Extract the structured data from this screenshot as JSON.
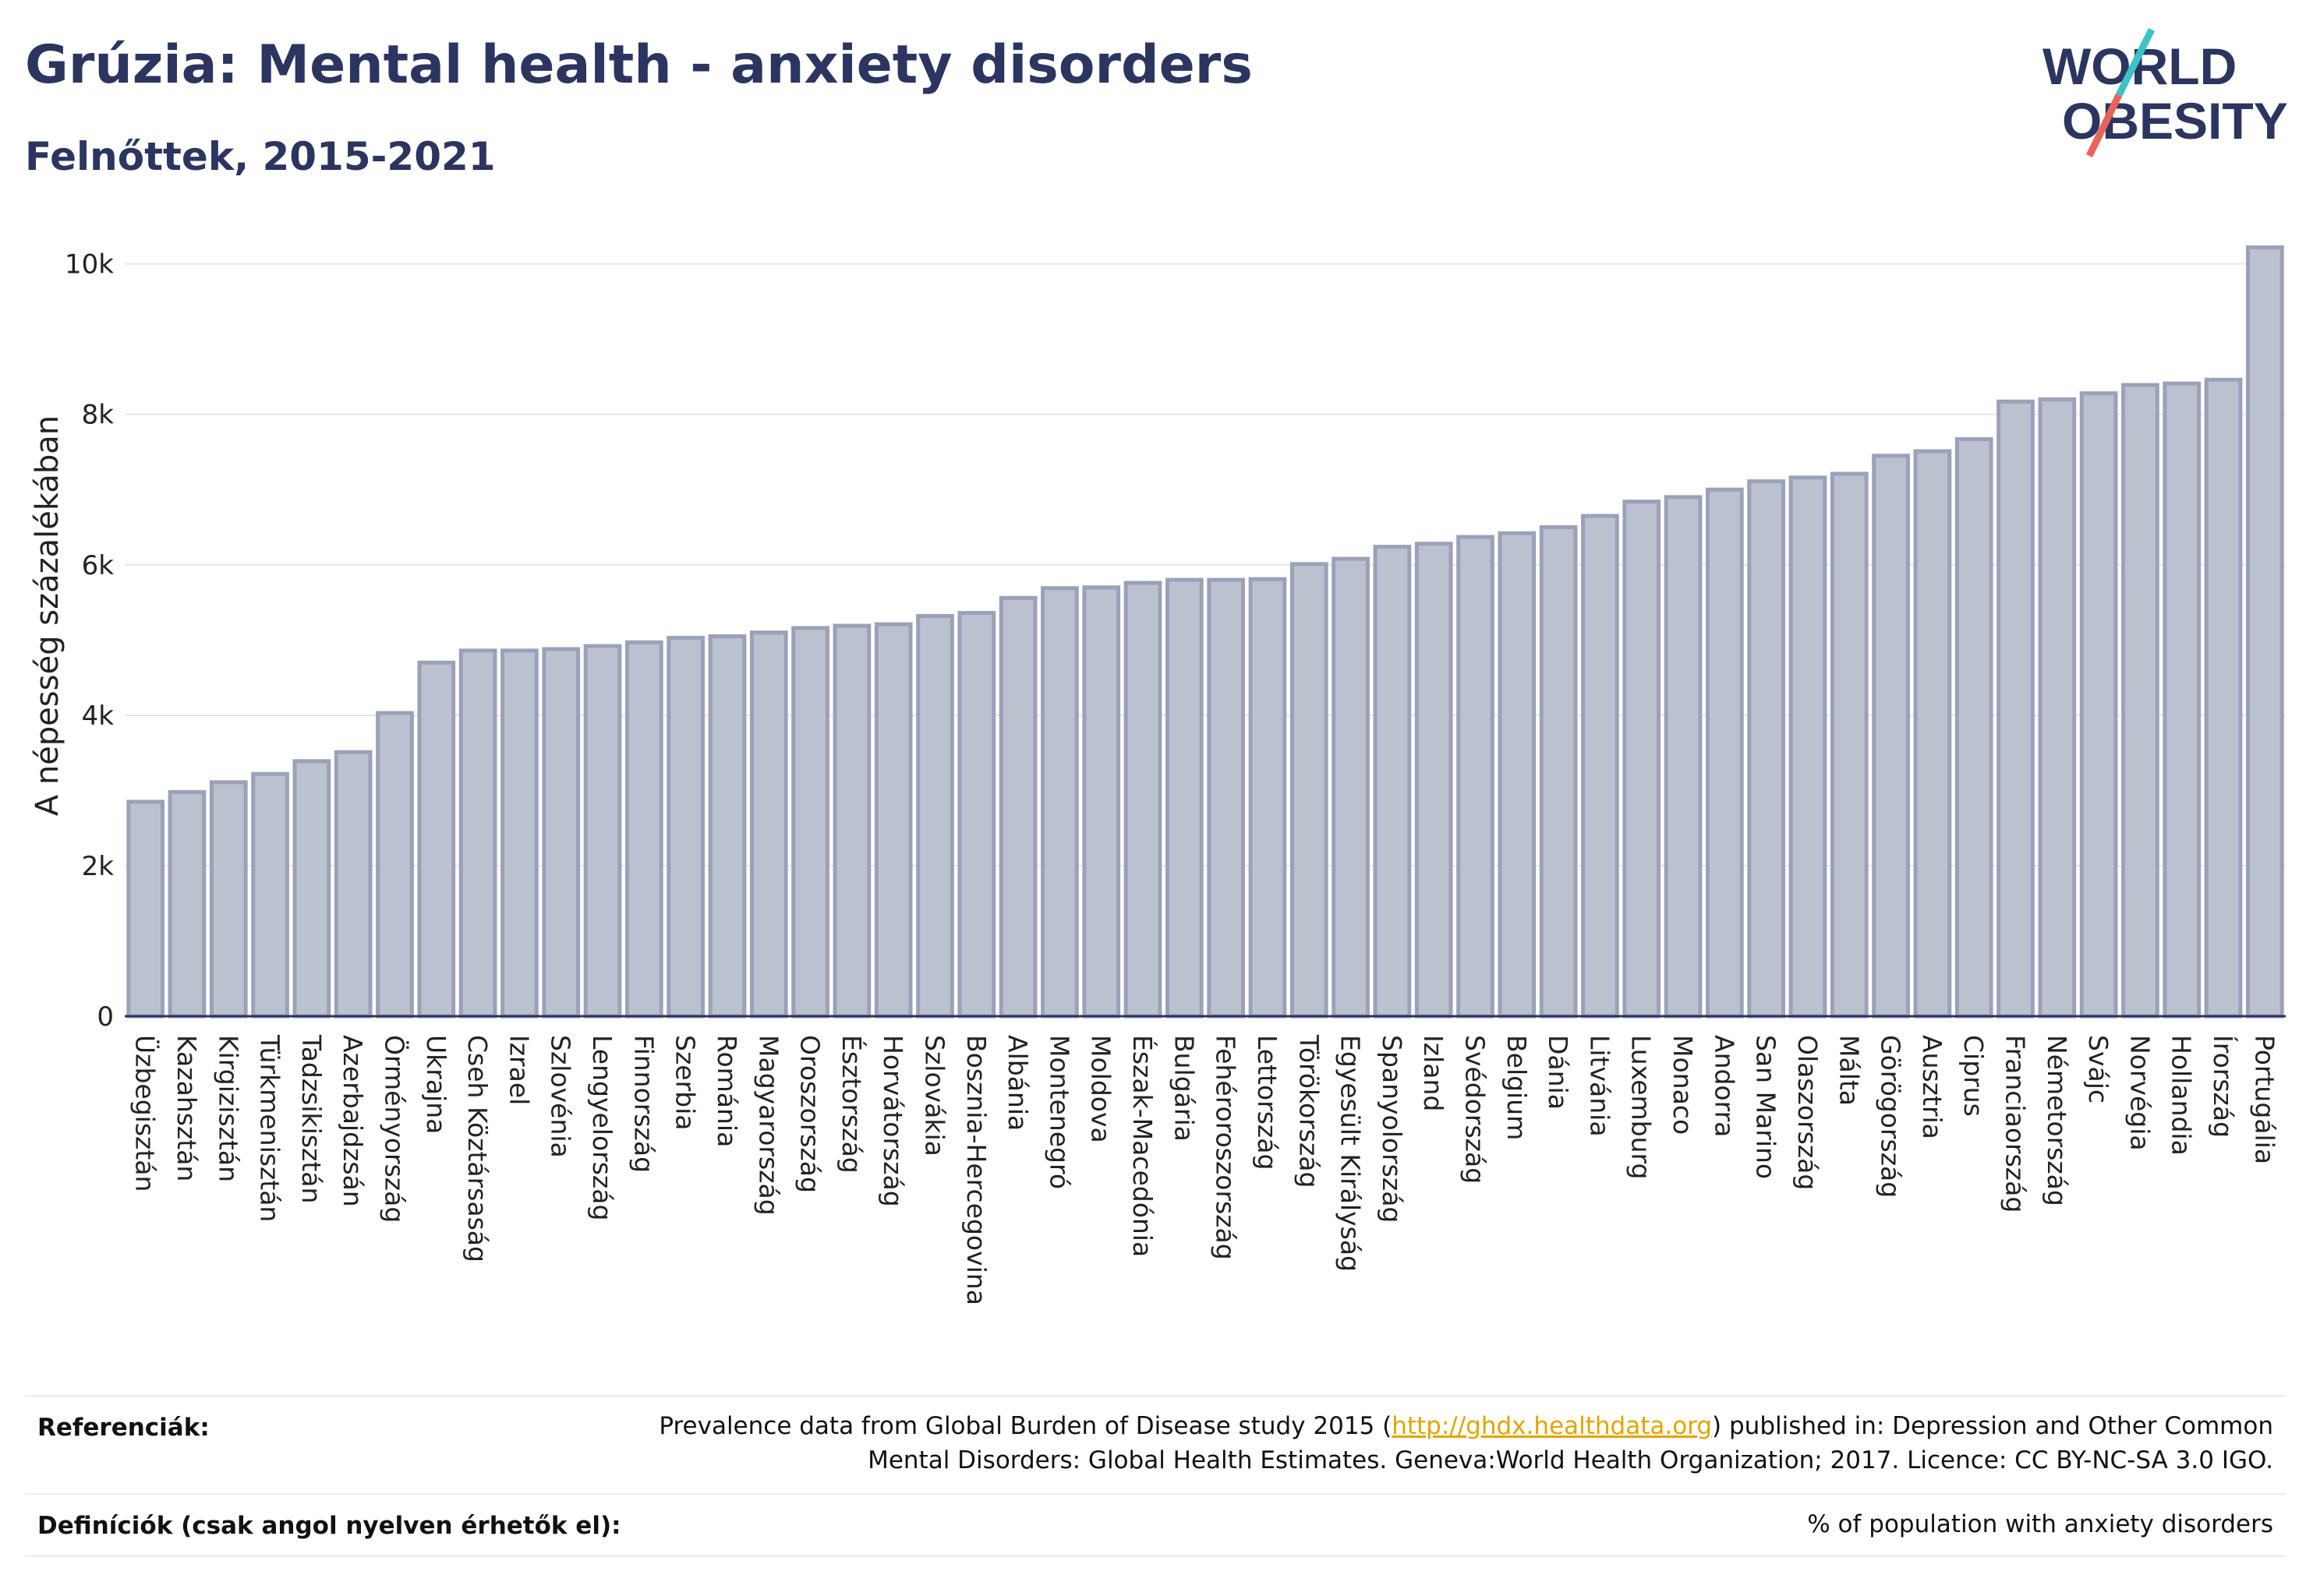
{
  "header": {
    "title": "Grúzia: Mental health - anxiety disorders",
    "subtitle": "Felnőttek, 2015-2021"
  },
  "logo": {
    "line1": "WORLD",
    "line2": "OBESITY",
    "accent_colors": [
      "#3ec2c9",
      "#e8645a"
    ],
    "brand_color": "#2b3560"
  },
  "footer": {
    "references_label": "Referenciák:",
    "references_text_before": "Prevalence data from Global Burden of Disease study 2015 (",
    "references_link": "http://ghdx.healthdata.org",
    "references_text_after": ") published in: Depression and Other Common",
    "references_text_line2": "Mental Disorders: Global Health Estimates. Geneva:World Health Organization; 2017. Licence: CC BY-NC-SA 3.0 IGO.",
    "definitions_label": "Definíciók (csak angol nyelven érhetők el):",
    "definitions_text": "% of population with anxiety disorders"
  },
  "chart_data": {
    "type": "bar",
    "ylabel": "A népesség százalékában",
    "xlabel": "",
    "ylim": [
      0,
      10400
    ],
    "yticks": [
      0,
      2000,
      4000,
      6000,
      8000,
      10000
    ],
    "ytick_labels": [
      "0",
      "2k",
      "4k",
      "6k",
      "8k",
      "10k"
    ],
    "grid": true,
    "bar_fill": "#bcc1cf",
    "bar_stroke": "#9aa1b8",
    "categories": [
      "Üzbegisztán",
      "Kazahsztán",
      "Kirgizisztán",
      "Türkmenisztán",
      "Tadzsikisztán",
      "Azerbajdzsán",
      "Örményország",
      "Ukrajna",
      "Cseh Köztársaság",
      "Izrael",
      "Szlovénia",
      "Lengyelország",
      "Finnország",
      "Szerbia",
      "Románia",
      "Magyarország",
      "Oroszország",
      "Észtország",
      "Horvátország",
      "Szlovákia",
      "Bosznia-Hercegovina",
      "Albánia",
      "Montenegró",
      "Moldova",
      "Észak-Macedónia",
      "Bulgária",
      "Fehéroroszország",
      "Lettország",
      "Törökország",
      "Egyesült Királyság",
      "Spanyolország",
      "Izland",
      "Svédország",
      "Belgium",
      "Dánia",
      "Litvánia",
      "Luxemburg",
      "Monaco",
      "Andorra",
      "San Marino",
      "Olaszország",
      "Málta",
      "Görögország",
      "Ausztria",
      "Ciprus",
      "Franciaország",
      "Németország",
      "Svájc",
      "Norvégia",
      "Hollandia",
      "Írország",
      "Portugália"
    ],
    "values": [
      2850,
      2980,
      3110,
      3220,
      3390,
      3510,
      4030,
      4700,
      4860,
      4860,
      4880,
      4920,
      4970,
      5030,
      5050,
      5100,
      5160,
      5190,
      5210,
      5320,
      5360,
      5560,
      5690,
      5700,
      5760,
      5800,
      5800,
      5810,
      6010,
      6080,
      6240,
      6280,
      6370,
      6420,
      6500,
      6650,
      6840,
      6900,
      7000,
      7110,
      7160,
      7210,
      7450,
      7510,
      7670,
      8170,
      8200,
      8280,
      8390,
      8410,
      8460,
      10220
    ]
  }
}
